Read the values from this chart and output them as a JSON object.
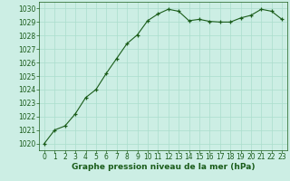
{
  "x": [
    0,
    1,
    2,
    3,
    4,
    5,
    6,
    7,
    8,
    9,
    10,
    11,
    12,
    13,
    14,
    15,
    16,
    17,
    18,
    19,
    20,
    21,
    22,
    23
  ],
  "y": [
    1020.0,
    1021.0,
    1021.3,
    1022.2,
    1023.4,
    1024.0,
    1025.2,
    1026.3,
    1027.4,
    1028.05,
    1029.1,
    1029.6,
    1029.95,
    1029.8,
    1029.1,
    1029.2,
    1029.05,
    1029.0,
    1029.0,
    1029.3,
    1029.5,
    1029.95,
    1029.8,
    1029.2
  ],
  "ylim": [
    1019.5,
    1030.5
  ],
  "yticks": [
    1020,
    1021,
    1022,
    1023,
    1024,
    1025,
    1026,
    1027,
    1028,
    1029,
    1030
  ],
  "xlim": [
    -0.5,
    23.5
  ],
  "xticks": [
    0,
    1,
    2,
    3,
    4,
    5,
    6,
    7,
    8,
    9,
    10,
    11,
    12,
    13,
    14,
    15,
    16,
    17,
    18,
    19,
    20,
    21,
    22,
    23
  ],
  "xlabel": "Graphe pression niveau de la mer (hPa)",
  "line_color": "#1a5c1a",
  "marker": "+",
  "marker_size": 3,
  "bg_color": "#cceee4",
  "grid_color": "#aaddcc",
  "label_color": "#1a5c1a",
  "tick_fontsize": 5.5,
  "xlabel_fontsize": 6.5
}
